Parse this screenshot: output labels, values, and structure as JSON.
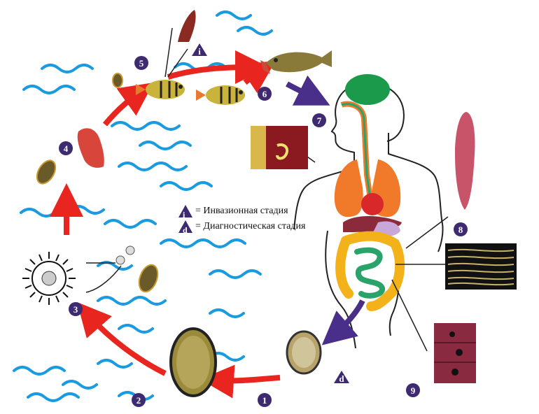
{
  "legend": {
    "invasive_symbol": "i",
    "invasive_text": "= Инвазионная стадия",
    "diagnostic_symbol": "d",
    "diagnostic_text": "= Диагностическая стадия"
  },
  "stage_labels": [
    "1",
    "2",
    "3",
    "4",
    "5",
    "6",
    "7",
    "8",
    "9"
  ],
  "stage_markers": [
    "i",
    "d"
  ],
  "colors": {
    "arrow_red": "#e8261f",
    "arrow_purple": "#4a2f8a",
    "badge": "#3d2a70",
    "water": "#1a9be0",
    "egg": "#9a8a3a",
    "brain": "#1a9a4a",
    "lungs": "#f07a2a",
    "intestine_small": "#2aa36a",
    "intestine_large": "#f4b21a"
  }
}
